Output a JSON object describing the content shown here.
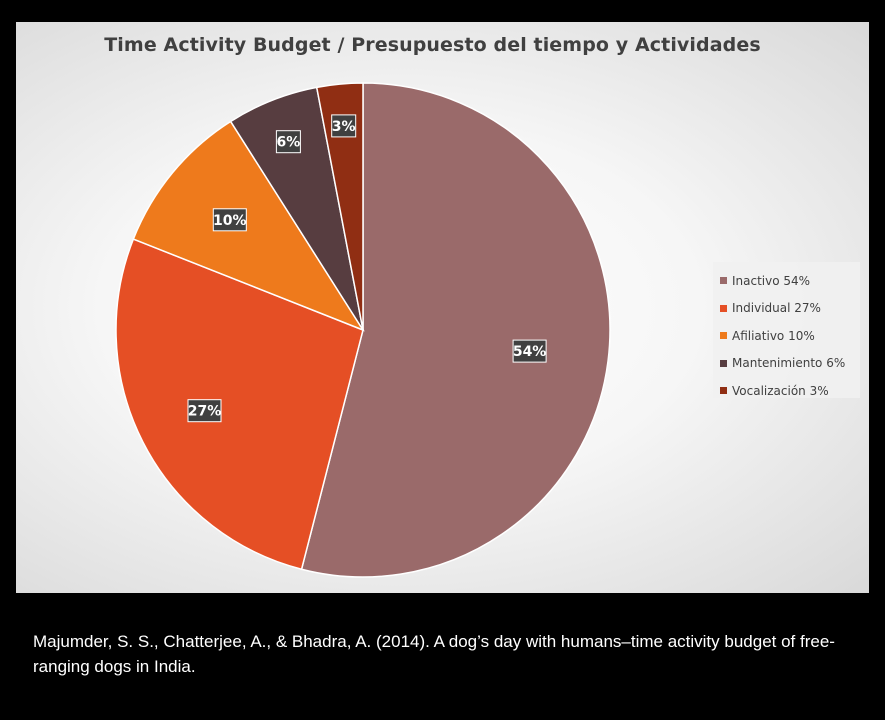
{
  "chart_data": {
    "type": "pie",
    "title": "Time Activity Budget / Presupuesto del tiempo y Actividades",
    "categories": [
      "Inactivo",
      "Individual",
      "Afiliativo",
      "Mantenimiento",
      "Vocalización"
    ],
    "values": [
      54,
      27,
      10,
      6,
      3
    ],
    "data_labels": [
      "54%",
      "27%",
      "10%",
      "6%",
      "3%"
    ],
    "legend_labels": [
      "Inactivo 54%",
      "Individual 27%",
      "Afiliativo 10%",
      "Mantenimiento 6%",
      "Vocalización 3%"
    ],
    "colors": [
      "#9a6a6a",
      "#e54f25",
      "#ee7a1c",
      "#573d40",
      "#902e13"
    ],
    "legend_position": "right",
    "start_angle": "12 o'clock, clockwise"
  },
  "citation": "Majumder, S. S., Chatterjee, A., & Bhadra, A. (2014). A dog’s day with humans–time activity budget of free-ranging dogs in India."
}
